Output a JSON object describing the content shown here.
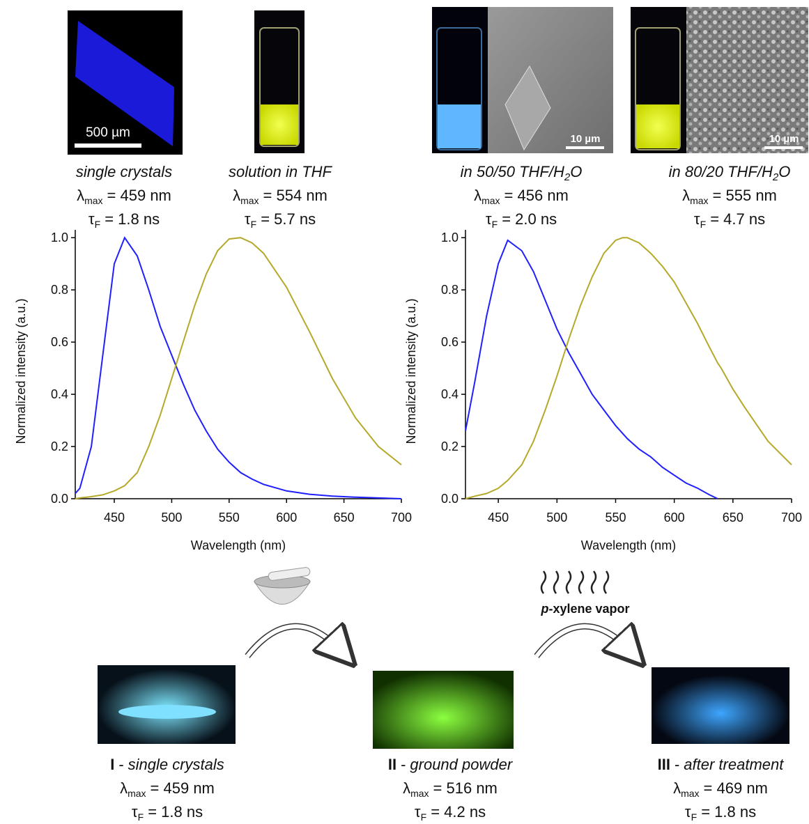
{
  "chart_data": [
    {
      "type": "line",
      "xlabel": "Wavelength (nm)",
      "ylabel": "Normalized intensity (a.u.)",
      "x": [
        416,
        420,
        430,
        440,
        450,
        459,
        470,
        480,
        490,
        500,
        510,
        520,
        530,
        540,
        550,
        560,
        570,
        580,
        600,
        620,
        640,
        660,
        680,
        700
      ],
      "series": [
        {
          "color": "#1f1fff",
          "values": [
            0.02,
            0.04,
            0.2,
            0.55,
            0.9,
            1.0,
            0.93,
            0.8,
            0.66,
            0.55,
            0.44,
            0.34,
            0.26,
            0.19,
            0.14,
            0.1,
            0.075,
            0.055,
            0.03,
            0.017,
            0.01,
            0.006,
            0.003,
            0.0
          ]
        },
        {
          "color": "#b5a92a",
          "values": [
            0.0,
            0.003,
            0.008,
            0.015,
            0.03,
            0.05,
            0.1,
            0.2,
            0.32,
            0.46,
            0.6,
            0.74,
            0.86,
            0.95,
            0.995,
            1.0,
            0.98,
            0.94,
            0.81,
            0.64,
            0.46,
            0.31,
            0.2,
            0.13
          ]
        }
      ],
      "xlim": [
        416,
        700
      ],
      "xticks": [
        450,
        500,
        550,
        600,
        650,
        700
      ],
      "ylim": [
        0,
        1.03
      ],
      "yticks": [
        {
          "value": 0,
          "label": "0.0"
        },
        0.2,
        0.4,
        0.6,
        0.8,
        {
          "value": 1,
          "label": "1.0"
        }
      ]
    },
    {
      "type": "line",
      "xlabel": "Wavelength (nm)",
      "ylabel": "Normalized intensity (a.u.)",
      "x": [
        422,
        430,
        440,
        450,
        458,
        470,
        480,
        490,
        500,
        510,
        520,
        530,
        540,
        550,
        556,
        560,
        570,
        580,
        590,
        600,
        610,
        620,
        630,
        637,
        640,
        650,
        660,
        680,
        700
      ],
      "series": [
        {
          "color": "#1f1fff",
          "values": [
            0.26,
            0.45,
            0.7,
            0.9,
            0.99,
            0.95,
            0.87,
            0.76,
            0.65,
            0.56,
            0.48,
            0.4,
            0.34,
            0.28,
            0.25,
            0.23,
            0.19,
            0.16,
            0.12,
            0.09,
            0.06,
            0.04,
            0.015,
            0.0,
            null,
            null,
            null,
            null,
            null
          ]
        },
        {
          "color": "#b5a92a",
          "values": [
            0.0,
            0.01,
            0.02,
            0.04,
            0.07,
            0.13,
            0.22,
            0.34,
            0.47,
            0.61,
            0.74,
            0.85,
            0.94,
            0.99,
            1.0,
            1.0,
            0.98,
            0.94,
            0.89,
            0.83,
            0.75,
            0.67,
            0.58,
            0.52,
            0.5,
            0.42,
            0.35,
            0.22,
            0.13
          ]
        }
      ],
      "xlim": [
        422,
        700
      ],
      "xticks": [
        450,
        500,
        550,
        600,
        650,
        700
      ],
      "ylim": [
        0,
        1.03
      ],
      "yticks": [
        {
          "value": 0,
          "label": "0.0"
        },
        0.2,
        0.4,
        0.6,
        0.8,
        {
          "value": 1,
          "label": "1.0"
        }
      ]
    }
  ],
  "top_captions": [
    {
      "name": "single crystals",
      "lambda": "λ",
      "lambda_sub": "max",
      "lambda_value": "= 459 nm",
      "tau": "τ",
      "tau_sub": "F",
      "tau_value": "= 1.8 ns"
    },
    {
      "name": "solution in THF",
      "lambda": "λ",
      "lambda_sub": "max",
      "lambda_value": "= 554 nm",
      "tau": "τ",
      "tau_sub": "F",
      "tau_value": "= 5.7 ns"
    },
    {
      "name": "in 50/50 THF/H",
      "name_sub": "2",
      "name_end": "O",
      "lambda": "λ",
      "lambda_sub": "max",
      "lambda_value": "= 456 nm",
      "tau": "τ",
      "tau_sub": "F",
      "tau_value": "= 2.0 ns"
    },
    {
      "name": "in 80/20 THF/H",
      "name_sub": "2",
      "name_end": "O",
      "lambda": "λ",
      "lambda_sub": "max",
      "lambda_value": "= 555 nm",
      "tau": "τ",
      "tau_sub": "F",
      "tau_value": "= 4.7 ns"
    }
  ],
  "scale_bars": [
    "500 µm",
    "10 µm",
    "10 µm"
  ],
  "vapor_label": {
    "italic": "p",
    "rest": "-xylene vapor"
  },
  "bottom_captions": [
    {
      "numeral": "I",
      "separator": "-",
      "name": "single crystals",
      "lambda": "λ",
      "lambda_sub": "max",
      "lambda_value": "= 459 nm",
      "tau": "τ",
      "tau_sub": "F",
      "tau_value": "= 1.8 ns"
    },
    {
      "numeral": "II",
      "separator": "-",
      "name": "ground powder",
      "lambda": "λ",
      "lambda_sub": "max",
      "lambda_value": "= 516 nm",
      "tau": "τ",
      "tau_sub": "F",
      "tau_value": "= 4.2 ns"
    },
    {
      "numeral": "III",
      "separator": "-",
      "name": "after treatment",
      "lambda": "λ",
      "lambda_sub": "max",
      "lambda_value": "= 469 nm",
      "tau": "τ",
      "tau_sub": "F",
      "tau_value": "= 1.8 ns"
    }
  ]
}
